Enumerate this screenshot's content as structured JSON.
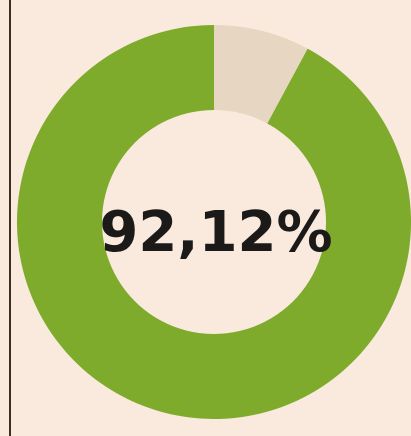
{
  "chart_data": {
    "type": "donut",
    "values": [
      92.12,
      7.88
    ],
    "value_labels": [
      "92,12%",
      null
    ],
    "colors": [
      "#7eab2b",
      "#e6d6c2"
    ]
  }
}
